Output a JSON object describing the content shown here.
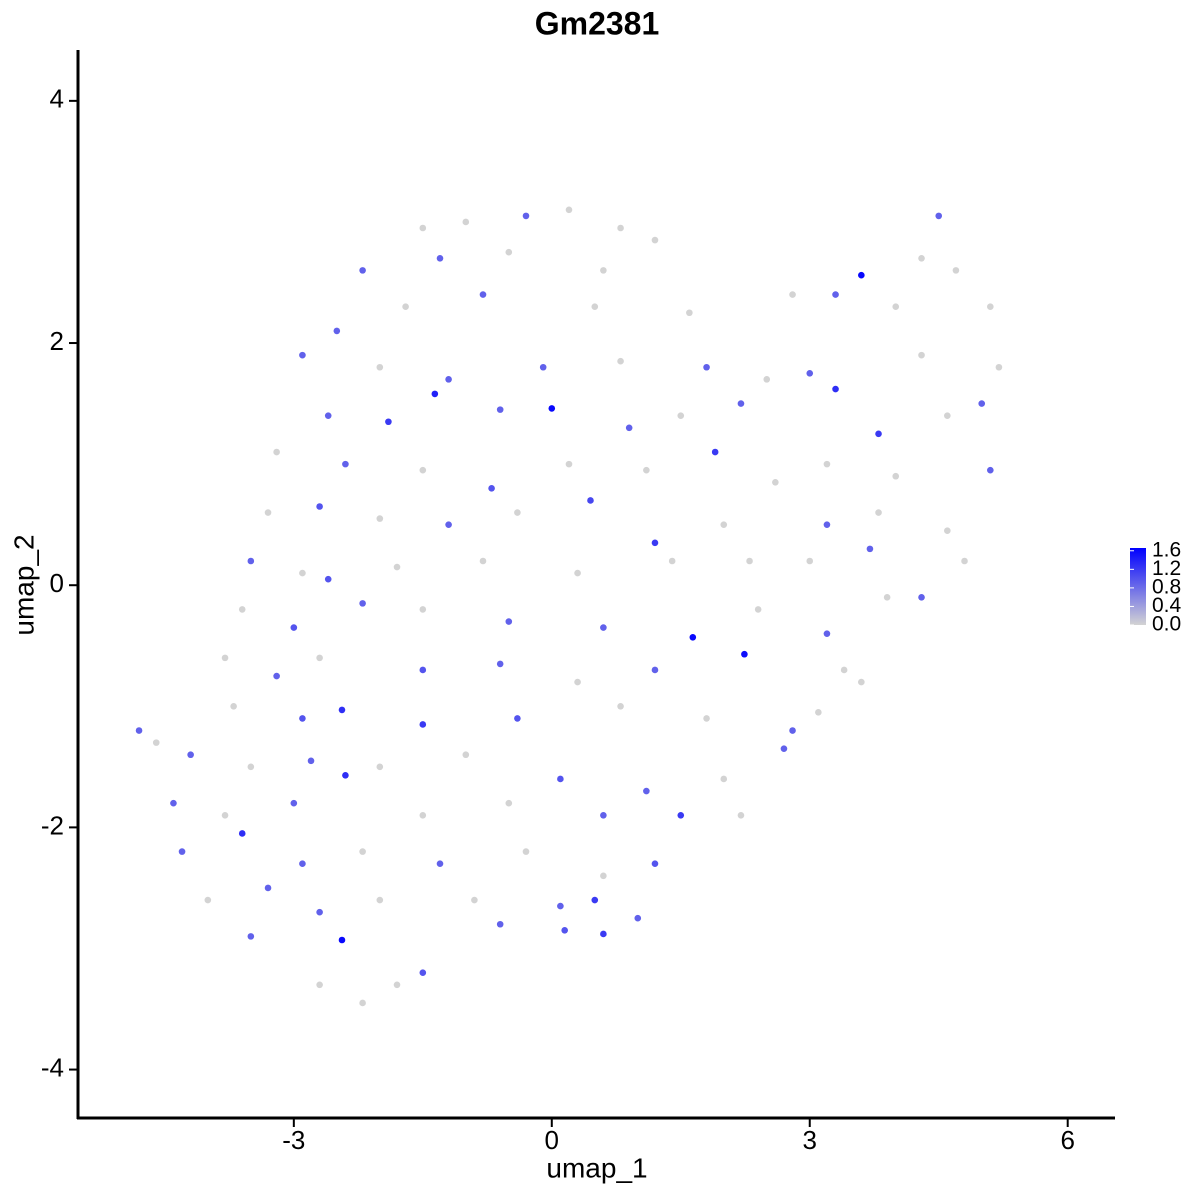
{
  "chart_data": {
    "type": "scatter",
    "title": "Gm2381",
    "x_label": "umap_1",
    "y_label": "umap_2",
    "xlim": [
      -5.51,
      6.55
    ],
    "ylim": [
      -4.4,
      4.42
    ],
    "xticks": [
      -3,
      0,
      3,
      6
    ],
    "yticks": [
      -4,
      -2,
      0,
      2,
      4
    ],
    "low_color": "#d3d3d3",
    "high_color": "#0000ff",
    "clim": [
      0,
      1.66
    ],
    "cticks": [
      {
        "value": 0,
        "label": "0.0"
      },
      {
        "value": 0.4,
        "label": "0.4"
      },
      {
        "value": 0.8,
        "label": "0.8"
      },
      {
        "value": 1.2,
        "label": "1.2"
      },
      {
        "value": 1.6,
        "label": "1.6"
      }
    ],
    "x": [
      -1.5,
      -1.0,
      -0.3,
      0.2,
      0.8,
      4.5,
      -2.2,
      -1.3,
      -0.5,
      0.6,
      1.2,
      3.6,
      4.3,
      4.7,
      -2.5,
      -1.7,
      -0.8,
      0.5,
      1.6,
      2.8,
      3.3,
      4.0,
      5.1,
      -2.9,
      -2.0,
      -1.2,
      -0.1,
      0.8,
      1.8,
      2.5,
      3.0,
      4.3,
      5.2,
      -2.6,
      -1.9,
      -1.36,
      -0.6,
      0,
      0.9,
      1.5,
      2.2,
      3.3,
      3.8,
      4.6,
      5.0,
      -3.2,
      -2.4,
      -1.5,
      -0.7,
      0.2,
      1.1,
      1.9,
      2.6,
      3.2,
      4.0,
      5.1,
      -3.3,
      -2.7,
      -2.0,
      -1.2,
      -0.4,
      0.45,
      1.2,
      2.0,
      3.2,
      3.8,
      4.6,
      -3.5,
      -2.9,
      -2.6,
      -1.8,
      -0.8,
      0.3,
      1.4,
      2.3,
      3.0,
      3.7,
      4.8,
      -3.6,
      -3.0,
      -2.2,
      -1.5,
      -0.5,
      0.6,
      1.64,
      2.4,
      3.2,
      3.9,
      4.3,
      -3.8,
      -3.2,
      -2.7,
      -1.5,
      -0.6,
      0.3,
      1.2,
      2.24,
      3.4,
      3.6,
      -4.8,
      -4.6,
      -3.7,
      -2.9,
      -2.44,
      -1.5,
      -0.4,
      0.8,
      1.8,
      2.8,
      3.1,
      -4.2,
      -3.5,
      -2.8,
      -2.0,
      -1.0,
      0.1,
      1.1,
      2.0,
      2.7,
      -4.4,
      -3.8,
      -3.0,
      -2.4,
      -1.5,
      -0.5,
      0.6,
      1.5,
      2.2,
      -4.3,
      -3.6,
      -2.9,
      -2.2,
      -1.3,
      -0.3,
      0.6,
      1.2,
      -4.0,
      -3.3,
      -2.7,
      -2.0,
      -0.9,
      0.1,
      0.5,
      1.0,
      -3.5,
      -2.44,
      -1.5,
      -0.6,
      0.15,
      0.6,
      -2.7,
      -2.2,
      -1.8
    ],
    "y": [
      2.95,
      3.0,
      3.05,
      3.1,
      2.95,
      3.05,
      2.6,
      2.7,
      2.75,
      2.6,
      2.85,
      2.56,
      2.7,
      2.6,
      2.1,
      2.3,
      2.4,
      2.3,
      2.25,
      2.4,
      2.4,
      2.3,
      2.3,
      1.9,
      1.8,
      1.7,
      1.8,
      1.85,
      1.8,
      1.7,
      1.75,
      1.9,
      1.8,
      1.4,
      1.35,
      1.58,
      1.45,
      1.46,
      1.3,
      1.4,
      1.5,
      1.62,
      1.25,
      1.4,
      1.5,
      1.1,
      1.0,
      0.95,
      0.8,
      1.0,
      0.95,
      1.1,
      0.85,
      1.0,
      0.9,
      0.95,
      0.6,
      0.65,
      0.55,
      0.5,
      0.6,
      0.7,
      0.35,
      0.5,
      0.5,
      0.6,
      0.45,
      0.2,
      0.1,
      0.05,
      0.15,
      0.2,
      0.1,
      0.2,
      0.2,
      0.2,
      0.3,
      0.2,
      -0.2,
      -0.35,
      -0.15,
      -0.2,
      -0.3,
      -0.35,
      -0.43,
      -0.2,
      -0.4,
      -0.1,
      -0.1,
      -0.6,
      -0.75,
      -0.6,
      -0.7,
      -0.65,
      -0.8,
      -0.7,
      -0.57,
      -0.7,
      -0.8,
      -1.2,
      -1.3,
      -1.0,
      -1.1,
      -1.03,
      -1.15,
      -1.1,
      -1.0,
      -1.1,
      -1.2,
      -1.05,
      -1.4,
      -1.5,
      -1.45,
      -1.5,
      -1.4,
      -1.6,
      -1.7,
      -1.6,
      -1.35,
      -1.8,
      -1.9,
      -1.8,
      -1.57,
      -1.9,
      -1.8,
      -1.9,
      -1.9,
      -1.9,
      -2.2,
      -2.05,
      -2.3,
      -2.2,
      -2.3,
      -2.2,
      -2.4,
      -2.3,
      -2.6,
      -2.5,
      -2.7,
      -2.6,
      -2.6,
      -2.65,
      -2.6,
      -2.75,
      -2.9,
      -2.93,
      -3.2,
      -2.8,
      -2.85,
      -2.88,
      -3.3,
      -3.45,
      -3.3
    ],
    "values": [
      0,
      0,
      0.9,
      0,
      0,
      0.9,
      0.9,
      0.9,
      0,
      0,
      0,
      1.6,
      0,
      0,
      0.9,
      0,
      0.9,
      0,
      0,
      0,
      0.9,
      0,
      0,
      0.9,
      0,
      0.9,
      0.9,
      0,
      0.9,
      0,
      0.9,
      0,
      0,
      0.9,
      1.2,
      1.4,
      0.9,
      1.6,
      0.9,
      0,
      0.9,
      1.3,
      1.2,
      0,
      0.9,
      0,
      0.9,
      0,
      1.0,
      0,
      0,
      1.2,
      0,
      0,
      0,
      0.9,
      0,
      1.0,
      0,
      0.9,
      0,
      1.1,
      1.2,
      0,
      0.9,
      0,
      0,
      0.9,
      0,
      1.0,
      0,
      0,
      0,
      0,
      0,
      0,
      0.9,
      0,
      0,
      1.0,
      0.9,
      0,
      0.9,
      0.9,
      1.6,
      0,
      0.9,
      0,
      0.9,
      0,
      0.9,
      0,
      1.0,
      0.9,
      0,
      0.9,
      1.55,
      0,
      0,
      0.9,
      0,
      0,
      1.0,
      1.3,
      1.2,
      1.0,
      0,
      0,
      0.9,
      0,
      0.9,
      0,
      0.9,
      0,
      0,
      1.0,
      0.9,
      0,
      0.9,
      0.9,
      0,
      0.9,
      1.3,
      0,
      0,
      0.9,
      1.2,
      0,
      0.9,
      1.3,
      0.9,
      0,
      0.9,
      0,
      0,
      1.0,
      0,
      0.9,
      0.9,
      0,
      0,
      0.9,
      1.2,
      0.9,
      0.9,
      1.6,
      1.0,
      0.9,
      1.0,
      1.2,
      0,
      0,
      0
    ]
  }
}
